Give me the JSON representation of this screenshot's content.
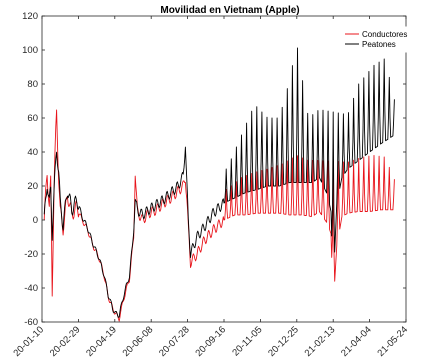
{
  "chart_data": {
    "type": "line",
    "title": "Movilidad en Vietnam (Apple)",
    "xlabel": "",
    "ylabel": "",
    "x_start": "2020-01-13",
    "x_end": "2021-05-08",
    "xlim": [
      "2020-01-10",
      "2021-05-24"
    ],
    "ylim": [
      -60,
      120
    ],
    "y_ticks": [
      -60,
      -40,
      -20,
      0,
      20,
      40,
      60,
      80,
      100,
      120
    ],
    "x_ticks": [
      {
        "date": "2020-01-10",
        "label": "20-01-10"
      },
      {
        "date": "2020-02-29",
        "label": "20-02-29"
      },
      {
        "date": "2020-04-19",
        "label": "20-04-19"
      },
      {
        "date": "2020-06-08",
        "label": "20-06-08"
      },
      {
        "date": "2020-07-28",
        "label": "20-07-28"
      },
      {
        "date": "2020-09-16",
        "label": "20-09-16"
      },
      {
        "date": "2020-11-05",
        "label": "20-11-05"
      },
      {
        "date": "2020-12-25",
        "label": "20-12-25"
      },
      {
        "date": "2021-02-13",
        "label": "21-02-13"
      },
      {
        "date": "2021-04-04",
        "label": "21-04-04"
      },
      {
        "date": "2021-05-24",
        "label": "21-05-24"
      }
    ],
    "grid": false,
    "legend_position": "top-right",
    "series": [
      {
        "name": "Conductores",
        "color": "#e8141b",
        "key_points": [
          [
            "2020-01-13",
            0
          ],
          [
            "2020-01-17",
            28
          ],
          [
            "2020-01-20",
            8
          ],
          [
            "2020-01-22",
            22
          ],
          [
            "2020-01-24",
            -43
          ],
          [
            "2020-01-27",
            28
          ],
          [
            "2020-01-30",
            63
          ],
          [
            "2020-02-02",
            25
          ],
          [
            "2020-02-04",
            5
          ],
          [
            "2020-02-08",
            -5
          ],
          [
            "2020-02-14",
            15
          ],
          [
            "2020-02-20",
            3
          ],
          [
            "2020-02-27",
            8
          ],
          [
            "2020-03-05",
            0
          ],
          [
            "2020-03-12",
            -5
          ],
          [
            "2020-03-20",
            -15
          ],
          [
            "2020-03-28",
            -22
          ],
          [
            "2020-04-04",
            -32
          ],
          [
            "2020-04-10",
            -45
          ],
          [
            "2020-04-16",
            -52
          ],
          [
            "2020-04-20",
            -55
          ],
          [
            "2020-04-25",
            -58
          ],
          [
            "2020-05-02",
            -45
          ],
          [
            "2020-05-09",
            -35
          ],
          [
            "2020-05-13",
            -18
          ],
          [
            "2020-05-15",
            -10
          ],
          [
            "2020-05-17",
            27
          ],
          [
            "2020-05-20",
            5
          ],
          [
            "2020-05-27",
            0
          ],
          [
            "2020-06-05",
            4
          ],
          [
            "2020-06-15",
            6
          ],
          [
            "2020-06-25",
            10
          ],
          [
            "2020-07-05",
            13
          ],
          [
            "2020-07-15",
            17
          ],
          [
            "2020-07-22",
            20
          ],
          [
            "2020-07-25",
            25
          ],
          [
            "2020-07-27",
            12
          ],
          [
            "2020-07-29",
            -5
          ],
          [
            "2020-08-01",
            -25
          ],
          [
            "2020-08-10",
            -20
          ],
          [
            "2020-08-20",
            -12
          ],
          [
            "2020-09-01",
            -6
          ],
          [
            "2020-09-16",
            0
          ],
          [
            "2020-10-01",
            3
          ],
          [
            "2020-10-15",
            3
          ],
          [
            "2020-11-01",
            4
          ],
          [
            "2020-11-15",
            4
          ],
          [
            "2020-12-01",
            4
          ],
          [
            "2020-12-15",
            3
          ],
          [
            "2021-01-01",
            3
          ],
          [
            "2021-01-15",
            2
          ],
          [
            "2021-01-25",
            5
          ],
          [
            "2021-02-05",
            -2
          ],
          [
            "2021-02-10",
            -8
          ],
          [
            "2021-02-13",
            -50
          ],
          [
            "2021-02-18",
            -15
          ],
          [
            "2021-02-25",
            2
          ],
          [
            "2021-03-05",
            4
          ],
          [
            "2021-03-20",
            5
          ],
          [
            "2021-04-04",
            5
          ],
          [
            "2021-04-20",
            6
          ],
          [
            "2021-05-08",
            6
          ]
        ],
        "weekly_peaks": [
          [
            "2020-09-20",
            18
          ],
          [
            "2020-10-10",
            25
          ],
          [
            "2020-10-28",
            28
          ],
          [
            "2020-11-15",
            30
          ],
          [
            "2020-12-05",
            33
          ],
          [
            "2020-12-25",
            38
          ],
          [
            "2021-01-10",
            35
          ],
          [
            "2021-01-25",
            35
          ],
          [
            "2021-03-05",
            34
          ],
          [
            "2021-03-25",
            37
          ],
          [
            "2021-04-10",
            38
          ],
          [
            "2021-04-25",
            37
          ],
          [
            "2021-05-08",
            24
          ]
        ]
      },
      {
        "name": "Peatones",
        "color": "#000000",
        "key_points": [
          [
            "2020-01-13",
            0
          ],
          [
            "2020-01-17",
            22
          ],
          [
            "2020-01-20",
            10
          ],
          [
            "2020-01-22",
            18
          ],
          [
            "2020-01-24",
            -8
          ],
          [
            "2020-01-27",
            20
          ],
          [
            "2020-01-30",
            42
          ],
          [
            "2020-02-02",
            28
          ],
          [
            "2020-02-04",
            10
          ],
          [
            "2020-02-08",
            -3
          ],
          [
            "2020-02-14",
            18
          ],
          [
            "2020-02-20",
            6
          ],
          [
            "2020-02-27",
            12
          ],
          [
            "2020-03-05",
            2
          ],
          [
            "2020-03-12",
            -4
          ],
          [
            "2020-03-20",
            -14
          ],
          [
            "2020-03-28",
            -22
          ],
          [
            "2020-04-04",
            -32
          ],
          [
            "2020-04-10",
            -44
          ],
          [
            "2020-04-16",
            -52
          ],
          [
            "2020-04-20",
            -55
          ],
          [
            "2020-04-25",
            -56
          ],
          [
            "2020-05-02",
            -43
          ],
          [
            "2020-05-09",
            -33
          ],
          [
            "2020-05-13",
            -16
          ],
          [
            "2020-05-15",
            -6
          ],
          [
            "2020-05-17",
            12
          ],
          [
            "2020-05-20",
            6
          ],
          [
            "2020-05-27",
            3
          ],
          [
            "2020-06-05",
            6
          ],
          [
            "2020-06-15",
            9
          ],
          [
            "2020-06-25",
            12
          ],
          [
            "2020-07-05",
            16
          ],
          [
            "2020-07-15",
            20
          ],
          [
            "2020-07-22",
            26
          ],
          [
            "2020-07-25",
            45
          ],
          [
            "2020-07-27",
            20
          ],
          [
            "2020-07-29",
            0
          ],
          [
            "2020-08-01",
            -20
          ],
          [
            "2020-08-10",
            -10
          ],
          [
            "2020-08-20",
            -4
          ],
          [
            "2020-09-01",
            4
          ],
          [
            "2020-09-16",
            10
          ],
          [
            "2020-10-01",
            13
          ],
          [
            "2020-10-15",
            16
          ],
          [
            "2020-11-01",
            18
          ],
          [
            "2020-11-15",
            20
          ],
          [
            "2020-12-01",
            20
          ],
          [
            "2020-12-15",
            22
          ],
          [
            "2021-01-01",
            22
          ],
          [
            "2021-01-15",
            22
          ],
          [
            "2021-01-25",
            25
          ],
          [
            "2021-02-05",
            15
          ],
          [
            "2021-02-10",
            5
          ],
          [
            "2021-02-13",
            -38
          ],
          [
            "2021-02-18",
            10
          ],
          [
            "2021-02-25",
            25
          ],
          [
            "2021-03-05",
            30
          ],
          [
            "2021-03-20",
            35
          ],
          [
            "2021-04-04",
            40
          ],
          [
            "2021-04-20",
            45
          ],
          [
            "2021-05-08",
            50
          ]
        ],
        "weekly_peaks": [
          [
            "2020-09-20",
            30
          ],
          [
            "2020-10-10",
            50
          ],
          [
            "2020-10-28",
            68
          ],
          [
            "2020-11-15",
            60
          ],
          [
            "2020-12-01",
            60
          ],
          [
            "2020-12-15",
            82
          ],
          [
            "2020-12-25",
            104
          ],
          [
            "2021-01-10",
            60
          ],
          [
            "2021-01-25",
            65
          ],
          [
            "2021-03-05",
            62
          ],
          [
            "2021-03-20",
            80
          ],
          [
            "2021-04-10",
            91
          ],
          [
            "2021-04-25",
            95
          ],
          [
            "2021-05-08",
            71
          ]
        ]
      }
    ]
  }
}
